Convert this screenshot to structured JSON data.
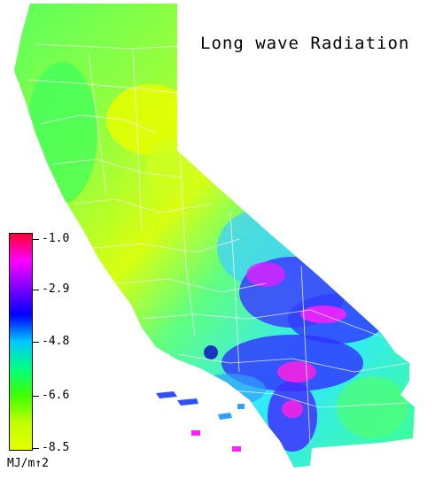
{
  "map": {
    "title": "Long wave Radiation",
    "region": "California"
  },
  "legend": {
    "unit": "MJ/m↑2",
    "ticks": [
      "-1.0",
      "-2.9",
      "-4.8",
      "-6.6",
      "-8.5"
    ],
    "range": [
      -8.5,
      -1.0
    ],
    "gradient_colors": [
      "#ff0033",
      "#ff00ff",
      "#8000ff",
      "#0000ff",
      "#00c8ff",
      "#00ff80",
      "#40ff00",
      "#c0ff00",
      "#e6ff00"
    ]
  },
  "colors": {
    "high_radiation": "#ff00ff",
    "mid": "#0000ff",
    "low": "#c8ff00",
    "background": "#ffffff"
  }
}
